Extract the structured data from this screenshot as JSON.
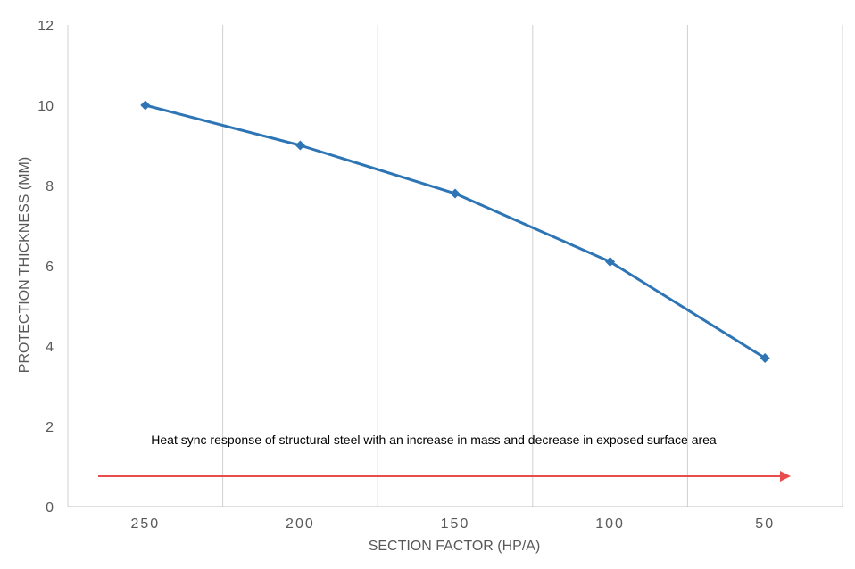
{
  "chart_data": {
    "type": "line",
    "title": "",
    "xlabel": "SECTION FACTOR (HP/A)",
    "ylabel": "PROTECTION THICKNESS (MM)",
    "categories": [
      "250",
      "200",
      "150",
      "100",
      "50"
    ],
    "series": [
      {
        "name": "Protection thickness",
        "values": [
          10,
          9,
          7.8,
          6.1,
          3.7
        ],
        "color": "#2E75B6"
      }
    ],
    "ylim": [
      0,
      12
    ],
    "yticks": [
      "0",
      "2",
      "4",
      "6",
      "8",
      "10",
      "12"
    ],
    "grid": "vertical",
    "legend": "none",
    "annotation": {
      "text": "Heat sync response of structural steel with an increase in mass and decrease in exposed  surface area",
      "arrow_direction": "right",
      "arrow_color": "#E84C4C"
    }
  }
}
